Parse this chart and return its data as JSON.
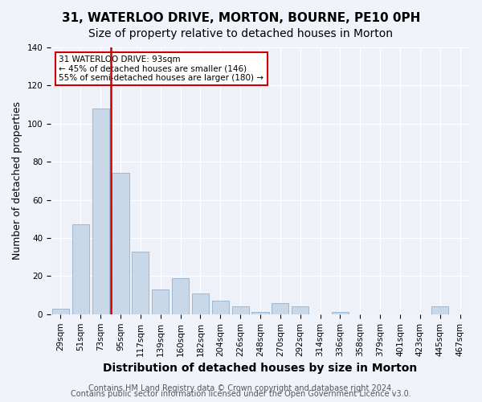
{
  "title": "31, WATERLOO DRIVE, MORTON, BOURNE, PE10 0PH",
  "subtitle": "Size of property relative to detached houses in Morton",
  "xlabel": "Distribution of detached houses by size in Morton",
  "ylabel": "Number of detached properties",
  "footnote1": "Contains HM Land Registry data © Crown copyright and database right 2024.",
  "footnote2": "Contains public sector information licensed under the Open Government Licence v3.0.",
  "bar_labels": [
    "29sqm",
    "51sqm",
    "73sqm",
    "95sqm",
    "117sqm",
    "139sqm",
    "160sqm",
    "182sqm",
    "204sqm",
    "226sqm",
    "248sqm",
    "270sqm",
    "292sqm",
    "314sqm",
    "336sqm",
    "358sqm",
    "379sqm",
    "401sqm",
    "423sqm",
    "445sqm",
    "467sqm"
  ],
  "bar_values": [
    3,
    47,
    108,
    74,
    33,
    13,
    19,
    11,
    7,
    4,
    1,
    6,
    4,
    0,
    1,
    0,
    0,
    0,
    0,
    4,
    0
  ],
  "bar_color": "#c8d8e8",
  "bar_edgecolor": "#a0b8d0",
  "vline_x": 2.5,
  "vline_color": "#cc0000",
  "annotation_title": "31 WATERLOO DRIVE: 93sqm",
  "annotation_line1": "← 45% of detached houses are smaller (146)",
  "annotation_line2": "55% of semi-detached houses are larger (180) →",
  "annotation_box_color": "#ffffff",
  "annotation_box_edgecolor": "#cc0000",
  "ylim": [
    0,
    140
  ],
  "yticks": [
    0,
    20,
    40,
    60,
    80,
    100,
    120,
    140
  ],
  "background_color": "#eef2f8",
  "fig_background_color": "#f0f4fa",
  "grid_color": "#ffffff",
  "title_fontsize": 11,
  "subtitle_fontsize": 10,
  "xlabel_fontsize": 10,
  "ylabel_fontsize": 9,
  "tick_fontsize": 7.5,
  "footnote_fontsize": 7
}
